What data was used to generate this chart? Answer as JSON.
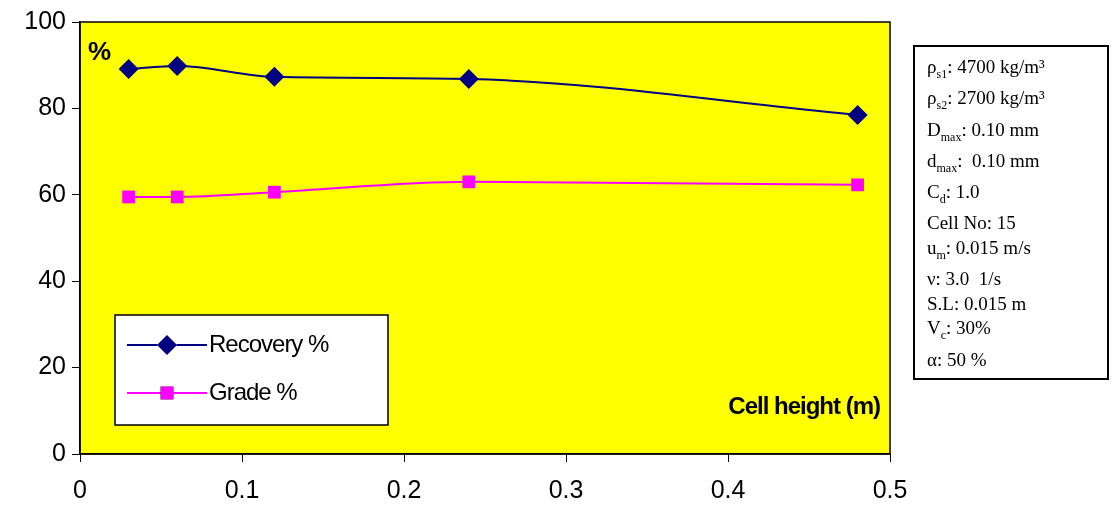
{
  "chart_data": {
    "type": "line",
    "xlabel": "Cell height (m)",
    "ylabel": "%",
    "xlim": [
      0,
      0.5
    ],
    "xticks": [
      0,
      0.1,
      0.2,
      0.3,
      0.4,
      0.5
    ],
    "ylim": [
      0,
      100
    ],
    "yticks": [
      0,
      20,
      40,
      60,
      80,
      100
    ],
    "grid": false,
    "legend": "bottom left",
    "series": [
      {
        "name": "Recovery %",
        "color": "#000080",
        "marker": "diamond",
        "x": [
          0.03,
          0.06,
          0.12,
          0.24,
          0.48
        ],
        "values": [
          89.1,
          89.8,
          87.3,
          86.8,
          78.5
        ]
      },
      {
        "name": "Grade %",
        "color": "#ff00ff",
        "marker": "square",
        "x": [
          0.03,
          0.06,
          0.12,
          0.24,
          0.48
        ],
        "values": [
          59.5,
          59.5,
          60.6,
          63,
          62.3
        ]
      }
    ],
    "annotations": [
      "ρ$_{s1}$: 4700 kg/m³",
      "ρ$_{s2}$: 2700 kg/m³",
      "D$_{max}$: 0.10 mm",
      "d$_{max}$:  0.10 mm",
      "C$_{d}$: 1.0",
      "Cell No: 15",
      "u$_{m}$: 0.015 m/s",
      "ν: 3.0  1/s",
      "S.L: 0.015 m",
      "V$_{c}$: 30%",
      "α: 50 %"
    ]
  }
}
